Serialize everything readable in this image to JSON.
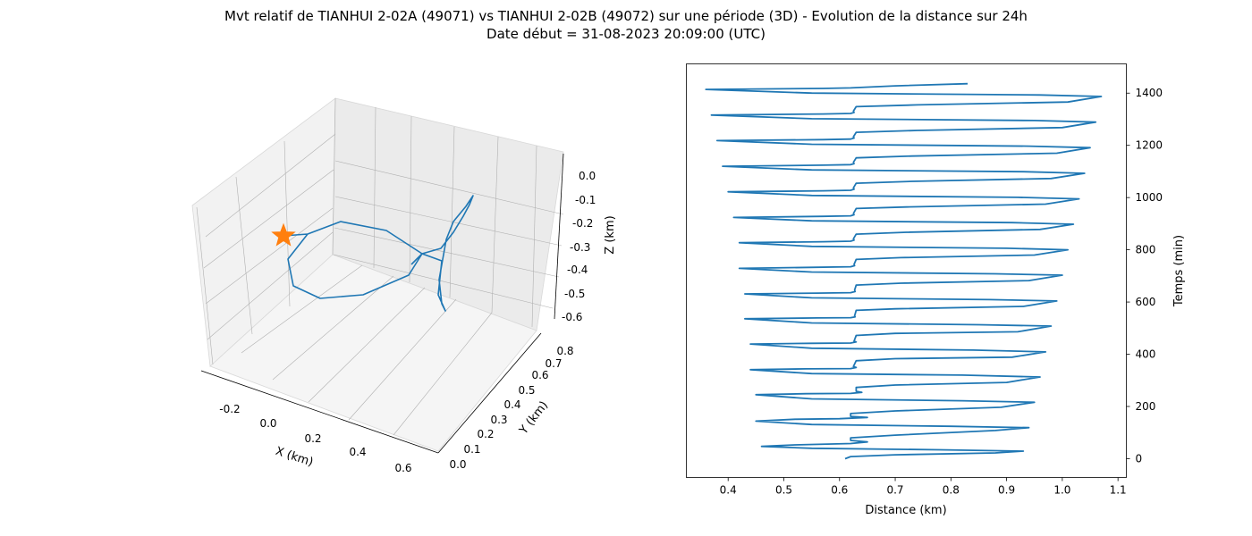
{
  "figure": {
    "title_line1": "Mvt relatif de TIANHUI 2-02A (49071) vs TIANHUI 2-02B (49072) sur une période (3D) - Evolution de la distance sur 24h",
    "title_line2": "Date début = 31-08-2023 20:09:00 (UTC)"
  },
  "colors": {
    "series": "#1f77b4",
    "marker": "#ff7f0e",
    "pane": "#f2f2f2",
    "grid": "#b0b0b0"
  },
  "chart_data": [
    {
      "type": "line3d",
      "xlabel": "X (km)",
      "ylabel": "Y (km)",
      "zlabel": "Z (km)",
      "x_ticks": [
        "-0.2",
        "0.0",
        "0.2",
        "0.4",
        "0.6"
      ],
      "y_ticks": [
        "0.0",
        "0.1",
        "0.2",
        "0.3",
        "0.4",
        "0.5",
        "0.6",
        "0.7",
        "0.8"
      ],
      "z_ticks": [
        "0.0",
        "-0.1",
        "-0.2",
        "-0.3",
        "-0.4",
        "-0.5",
        "-0.6"
      ],
      "marker": {
        "shape": "star",
        "x": -0.28,
        "y": 0.05,
        "z": -0.22
      },
      "series_points": [
        {
          "x": -0.28,
          "y": 0.05,
          "z": -0.22
        },
        {
          "x": -0.2,
          "y": 0.15,
          "z": -0.15
        },
        {
          "x": -0.05,
          "y": 0.25,
          "z": -0.1
        },
        {
          "x": 0.1,
          "y": 0.4,
          "z": -0.12
        },
        {
          "x": 0.22,
          "y": 0.55,
          "z": -0.2
        },
        {
          "x": 0.3,
          "y": 0.6,
          "z": -0.35
        },
        {
          "x": 0.35,
          "y": 0.65,
          "z": -0.5
        },
        {
          "x": 0.38,
          "y": 0.7,
          "z": -0.55
        },
        {
          "x": 0.36,
          "y": 0.72,
          "z": -0.45
        },
        {
          "x": 0.4,
          "y": 0.75,
          "z": -0.25
        },
        {
          "x": 0.45,
          "y": 0.8,
          "z": -0.05
        },
        {
          "x": 0.42,
          "y": 0.78,
          "z": -0.1
        },
        {
          "x": 0.35,
          "y": 0.7,
          "z": -0.15
        },
        {
          "x": 0.25,
          "y": 0.55,
          "z": -0.25
        },
        {
          "x": 0.1,
          "y": 0.4,
          "z": -0.4
        },
        {
          "x": -0.05,
          "y": 0.3,
          "z": -0.5
        },
        {
          "x": -0.2,
          "y": 0.2,
          "z": -0.45
        },
        {
          "x": -0.27,
          "y": 0.1,
          "z": -0.35
        },
        {
          "x": -0.28,
          "y": 0.05,
          "z": -0.22
        }
      ]
    },
    {
      "type": "line",
      "xlabel": "Distance (km)",
      "ylabel": "Temps (min)",
      "xlim": [
        0.325,
        1.115
      ],
      "ylim": [
        -72,
        1512
      ],
      "x_ticks": [
        0.4,
        0.5,
        0.6,
        0.7,
        0.8,
        0.9,
        1.0,
        1.1
      ],
      "y_ticks": [
        0,
        200,
        400,
        600,
        800,
        1000,
        1200,
        1400
      ],
      "series": [
        {
          "points": [
            [
              0.61,
              0
            ],
            [
              0.62,
              8
            ],
            [
              0.7,
              15
            ],
            [
              0.88,
              22
            ],
            [
              0.93,
              29
            ],
            [
              0.78,
              34
            ],
            [
              0.55,
              40
            ],
            [
              0.46,
              47
            ],
            [
              0.52,
              53
            ],
            [
              0.62,
              58
            ],
            [
              0.65,
              64
            ],
            [
              0.62,
              70
            ],
            [
              0.62,
              80
            ],
            [
              0.7,
              90
            ],
            [
              0.88,
              108
            ],
            [
              0.94,
              119
            ],
            [
              0.8,
              124
            ],
            [
              0.55,
              131
            ],
            [
              0.45,
              144
            ],
            [
              0.52,
              151
            ],
            [
              0.6,
              153
            ],
            [
              0.65,
              158
            ],
            [
              0.62,
              162
            ],
            [
              0.62,
              173
            ],
            [
              0.7,
              183
            ],
            [
              0.89,
              197
            ],
            [
              0.95,
              216
            ],
            [
              0.82,
              222
            ],
            [
              0.55,
              229
            ],
            [
              0.45,
              245
            ],
            [
              0.54,
              249
            ],
            [
              0.62,
              250
            ],
            [
              0.64,
              254
            ],
            [
              0.63,
              258
            ],
            [
              0.63,
              273
            ],
            [
              0.7,
              282
            ],
            [
              0.9,
              292
            ],
            [
              0.96,
              313
            ],
            [
              0.82,
              320
            ],
            [
              0.55,
              326
            ],
            [
              0.44,
              341
            ],
            [
              0.54,
              344
            ],
            [
              0.62,
              345
            ],
            [
              0.63,
              349
            ],
            [
              0.625,
              353
            ],
            [
              0.63,
              375
            ],
            [
              0.7,
              383
            ],
            [
              0.91,
              389
            ],
            [
              0.97,
              409
            ],
            [
              0.84,
              416
            ],
            [
              0.55,
              423
            ],
            [
              0.44,
              439
            ],
            [
              0.55,
              442
            ],
            [
              0.62,
              443
            ],
            [
              0.63,
              447
            ],
            [
              0.626,
              450
            ],
            [
              0.63,
              472
            ],
            [
              0.7,
              480
            ],
            [
              0.92,
              486
            ],
            [
              0.98,
              508
            ],
            [
              0.85,
              513
            ],
            [
              0.55,
              520
            ],
            [
              0.43,
              536
            ],
            [
              0.56,
              539
            ],
            [
              0.62,
              540
            ],
            [
              0.628,
              543
            ],
            [
              0.627,
              547
            ],
            [
              0.63,
              568
            ],
            [
              0.7,
              574
            ],
            [
              0.93,
              583
            ],
            [
              0.99,
              604
            ],
            [
              0.87,
              609
            ],
            [
              0.55,
              616
            ],
            [
              0.43,
              631
            ],
            [
              0.56,
              634
            ],
            [
              0.62,
              636
            ],
            [
              0.628,
              640
            ],
            [
              0.627,
              645
            ],
            [
              0.63,
              665
            ],
            [
              0.71,
              672
            ],
            [
              0.94,
              682
            ],
            [
              1.0,
              703
            ],
            [
              0.88,
              708
            ],
            [
              0.55,
              715
            ],
            [
              0.42,
              729
            ],
            [
              0.56,
              733
            ],
            [
              0.62,
              735
            ],
            [
              0.627,
              739
            ],
            [
              0.626,
              744
            ],
            [
              0.63,
              763
            ],
            [
              0.71,
              770
            ],
            [
              0.95,
              780
            ],
            [
              1.01,
              800
            ],
            [
              0.9,
              806
            ],
            [
              0.55,
              813
            ],
            [
              0.42,
              827
            ],
            [
              0.57,
              831
            ],
            [
              0.62,
              833
            ],
            [
              0.626,
              837
            ],
            [
              0.625,
              842
            ],
            [
              0.63,
              860
            ],
            [
              0.72,
              867
            ],
            [
              0.96,
              878
            ],
            [
              1.02,
              898
            ],
            [
              0.91,
              904
            ],
            [
              0.55,
              911
            ],
            [
              0.41,
              924
            ],
            [
              0.57,
              928
            ],
            [
              0.62,
              930
            ],
            [
              0.626,
              934
            ],
            [
              0.625,
              939
            ],
            [
              0.63,
              958
            ],
            [
              0.72,
              964
            ],
            [
              0.97,
              975
            ],
            [
              1.03,
              995
            ],
            [
              0.92,
              1001
            ],
            [
              0.55,
              1008
            ],
            [
              0.4,
              1022
            ],
            [
              0.57,
              1026
            ],
            [
              0.62,
              1028
            ],
            [
              0.626,
              1032
            ],
            [
              0.625,
              1037
            ],
            [
              0.63,
              1055
            ],
            [
              0.73,
              1062
            ],
            [
              0.98,
              1073
            ],
            [
              1.04,
              1093
            ],
            [
              0.93,
              1099
            ],
            [
              0.55,
              1106
            ],
            [
              0.39,
              1120
            ],
            [
              0.57,
              1124
            ],
            [
              0.62,
              1126
            ],
            [
              0.626,
              1130
            ],
            [
              0.625,
              1135
            ],
            [
              0.63,
              1152
            ],
            [
              0.73,
              1159
            ],
            [
              0.99,
              1170
            ],
            [
              1.05,
              1191
            ],
            [
              0.94,
              1197
            ],
            [
              0.55,
              1204
            ],
            [
              0.38,
              1218
            ],
            [
              0.57,
              1222
            ],
            [
              0.62,
              1224
            ],
            [
              0.626,
              1228
            ],
            [
              0.625,
              1233
            ],
            [
              0.63,
              1250
            ],
            [
              0.74,
              1257
            ],
            [
              1.0,
              1268
            ],
            [
              1.06,
              1289
            ],
            [
              0.95,
              1295
            ],
            [
              0.55,
              1302
            ],
            [
              0.37,
              1316
            ],
            [
              0.57,
              1320
            ],
            [
              0.62,
              1322
            ],
            [
              0.626,
              1326
            ],
            [
              0.625,
              1331
            ],
            [
              0.63,
              1348
            ],
            [
              0.74,
              1355
            ],
            [
              1.01,
              1366
            ],
            [
              1.07,
              1387
            ],
            [
              0.96,
              1393
            ],
            [
              0.55,
              1400
            ],
            [
              0.36,
              1414
            ],
            [
              0.57,
              1418
            ],
            [
              0.62,
              1420
            ],
            [
              0.7,
              1428
            ],
            [
              0.83,
              1436
            ]
          ]
        }
      ]
    }
  ]
}
